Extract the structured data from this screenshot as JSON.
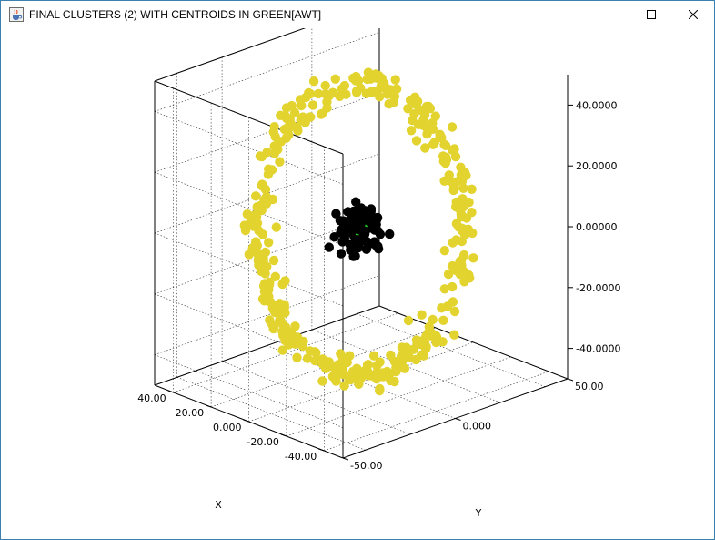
{
  "window": {
    "title": "FINAL CLUSTERS (2) WITH CENTROIDS IN GREEN[AWT]",
    "icon": "java-cup-icon",
    "controls": [
      "minimize-icon",
      "maximize-icon",
      "close-icon"
    ]
  },
  "chart_data": {
    "type": "scatter",
    "title": "FINAL CLUSTERS (2) WITH CENTROIDS IN GREEN",
    "xlabel": "X",
    "ylabel": "Y",
    "x_ticks": [
      "-40.00",
      "-20.00",
      "0.000",
      "20.00",
      "40.00"
    ],
    "y_ticks": [
      "-50.00",
      "0.000",
      "50.00"
    ],
    "z_ticks": [
      "40.0000",
      "20.0000",
      "0.00000",
      "-20.0000",
      "-40.0000"
    ],
    "xlim": [
      -50,
      50
    ],
    "ylim": [
      -50,
      50
    ],
    "zlim": [
      -50,
      50
    ],
    "grid": true,
    "series": [
      {
        "description": "outer ring cluster",
        "color": "#e3d32f",
        "shape": "ring",
        "radius": 50,
        "center": [
          0,
          0,
          0
        ],
        "approx_points": 400
      },
      {
        "description": "inner cluster",
        "color": "#000000",
        "shape": "blob",
        "radius": 7,
        "center": [
          0,
          0,
          0
        ],
        "approx_points": 80
      }
    ],
    "centroids": {
      "color": "#22dd22",
      "points": [
        [
          -1.5,
          0,
          1.0
        ],
        [
          1.5,
          0,
          -1.0
        ]
      ]
    }
  }
}
